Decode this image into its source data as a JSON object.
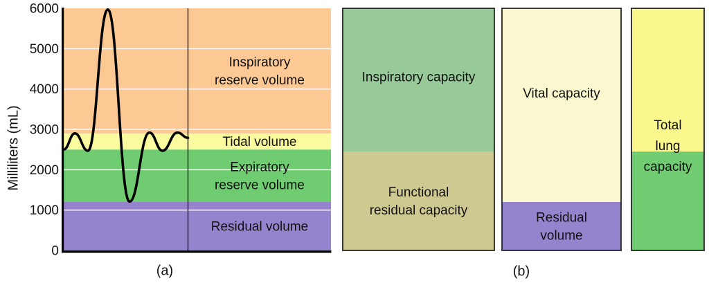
{
  "figure": {
    "caption_a": "(a)",
    "caption_b": "(b)"
  },
  "colors": {
    "background": "#FFFFFF",
    "gridline": "#FFFFFF",
    "axis": "#000000",
    "trace": "#000000",
    "bar_border": "#1A1A1A",
    "orange_band": "#FCC894",
    "yellow_band": "#FAFA9E",
    "green_band": "#6FCC71",
    "purple_band": "#9583CD",
    "sage_green": "#98C998",
    "khaki": "#CEC991",
    "cream": "#FAF8CE",
    "bright_yellow": "#FAF78C"
  },
  "chart_data": [
    {
      "type": "area",
      "panel": "a",
      "title": "",
      "xlabel": "",
      "ylabel": "Milliliters (mL)",
      "ylim": [
        0,
        6000
      ],
      "yticks": [
        "0",
        "1000",
        "2000",
        "3000",
        "4000",
        "5000",
        "6000"
      ],
      "ytick_values": [
        0,
        1000,
        2000,
        3000,
        4000,
        5000,
        6000
      ],
      "grid": "horizontal",
      "bands": [
        {
          "label": "Residual volume",
          "lines": [
            "Residual volume"
          ],
          "from_ml": 0,
          "to_ml": 1200,
          "color": "#9583CD"
        },
        {
          "label": "Expiratory reserve volume",
          "lines": [
            "Expiratory",
            "reserve volume"
          ],
          "from_ml": 1200,
          "to_ml": 2500,
          "color": "#6FCC71"
        },
        {
          "label": "Tidal volume",
          "lines": [
            "Tidal volume"
          ],
          "from_ml": 2500,
          "to_ml": 2900,
          "color": "#FAFA9E"
        },
        {
          "label": "Inspiratory reserve volume",
          "lines": [
            "Inspiratory",
            "reserve volume"
          ],
          "from_ml": 2900,
          "to_ml": 6000,
          "color": "#FCC894"
        }
      ],
      "trace": {
        "name": "spirogram-breathing-trace",
        "color": "#000000",
        "points_x_fraction_y_ml": [
          [
            0,
            2500
          ],
          [
            0.09,
            2900
          ],
          [
            0.195,
            2470
          ],
          [
            0.355,
            5970
          ],
          [
            0.53,
            1210
          ],
          [
            0.69,
            2920
          ],
          [
            0.795,
            2470
          ],
          [
            0.915,
            2920
          ],
          [
            1,
            2790
          ]
        ]
      }
    },
    {
      "type": "stacked-bar",
      "panel": "b",
      "ylim": [
        0,
        6000
      ],
      "bars": [
        {
          "segments": [
            {
              "label": "Functional residual capacity",
              "lines": [
                "Functional",
                "residual capacity"
              ],
              "from_ml": 0,
              "to_ml": 2450,
              "color": "#CEC991",
              "label_y_ml": 1230
            },
            {
              "label": "Inspiratory capacity",
              "lines": [
                "Inspiratory capacity"
              ],
              "from_ml": 2450,
              "to_ml": 6000,
              "color": "#98C998",
              "label_y_ml": 4300
            }
          ]
        },
        {
          "segments": [
            {
              "label": "Residual volume",
              "lines": [
                "Residual",
                "volume"
              ],
              "from_ml": 0,
              "to_ml": 1200,
              "color": "#9583CD",
              "label_y_ml": 600
            },
            {
              "label": "Vital capacity",
              "lines": [
                "Vital capacity"
              ],
              "from_ml": 1200,
              "to_ml": 6000,
              "color": "#FAF8CE",
              "label_y_ml": 3900
            }
          ]
        },
        {
          "label": "Total lung capacity",
          "lines": [
            "Total",
            "lung",
            "capacity"
          ],
          "label_y_ml": 2600,
          "segments": [
            {
              "label": "",
              "lines": [],
              "from_ml": 0,
              "to_ml": 2450,
              "color": "#6FCC71"
            },
            {
              "label": "",
              "lines": [],
              "from_ml": 2450,
              "to_ml": 6000,
              "color": "#FAF78C"
            }
          ]
        }
      ]
    }
  ]
}
